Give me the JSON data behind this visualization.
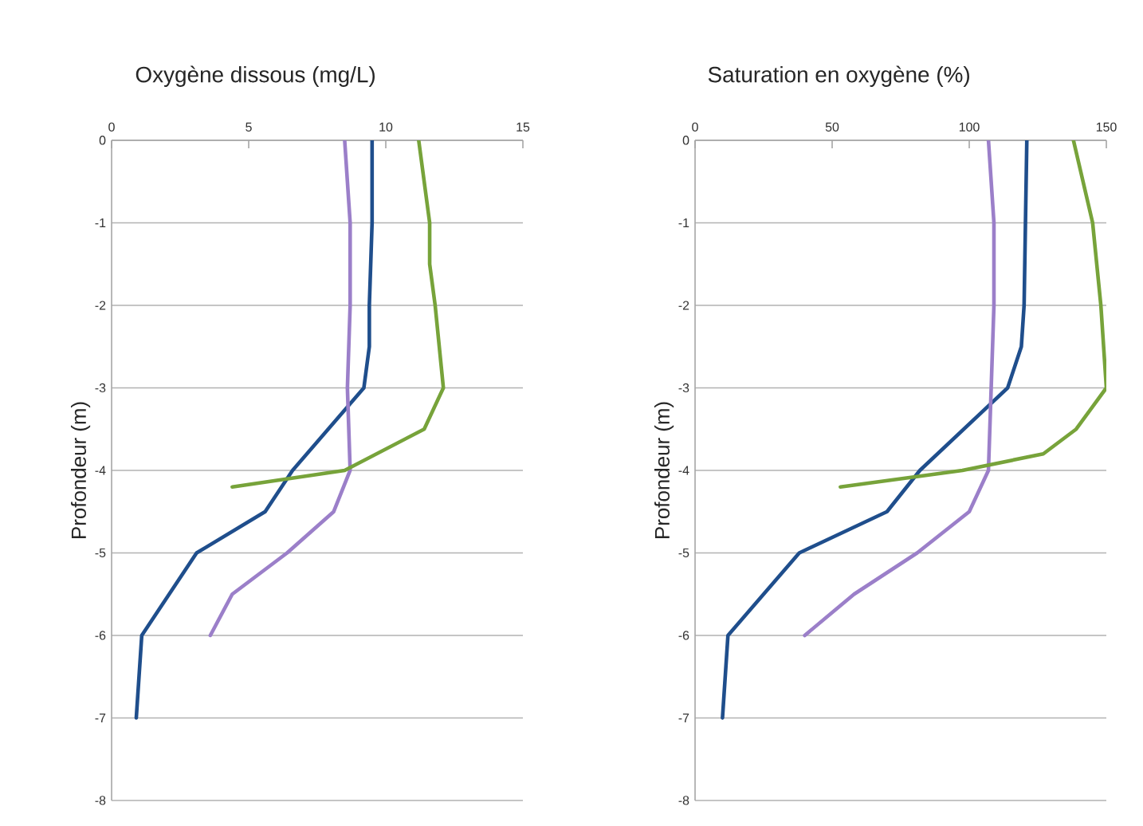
{
  "chart_data": [
    {
      "type": "line",
      "title": "Oxygène dissous (mg/L)",
      "ylabel": "Profondeur  (m)",
      "xlim": [
        0,
        15
      ],
      "xticks": [
        0,
        5,
        10,
        15
      ],
      "ylim": [
        -8,
        0
      ],
      "yticks": [
        -8,
        -7,
        -6,
        -5,
        -4,
        -3,
        -2,
        -1,
        0
      ],
      "grid": "y",
      "marker": "none",
      "line_style": "solid",
      "series": [
        {
          "color": "#1f4e8c",
          "x": [
            9.5,
            9.5,
            9.4,
            9.4,
            9.2,
            6.6,
            5.6,
            3.1,
            1.1,
            0.9
          ],
          "values": [
            0,
            -1,
            -2,
            -2.5,
            -3,
            -4,
            -4.5,
            -5,
            -6,
            -7
          ]
        },
        {
          "color": "#9b7fc9",
          "x": [
            8.5,
            8.7,
            8.7,
            8.6,
            8.7,
            8.1,
            6.4,
            4.4,
            3.6
          ],
          "values": [
            0,
            -1,
            -2,
            -3,
            -4,
            -4.5,
            -5,
            -5.5,
            -6
          ]
        },
        {
          "color": "#77a33a",
          "x": [
            11.2,
            11.6,
            11.6,
            11.8,
            12.1,
            11.4,
            8.5,
            4.4
          ],
          "values": [
            0,
            -1,
            -1.5,
            -2,
            -3,
            -3.5,
            -4,
            -4.2
          ]
        }
      ]
    },
    {
      "type": "line",
      "title": "Saturation en oxygène (%)",
      "ylabel": "Profondeur  (m)",
      "xlim": [
        0,
        150
      ],
      "xticks": [
        0,
        50,
        100,
        150
      ],
      "ylim": [
        -8,
        0
      ],
      "yticks": [
        -8,
        -7,
        -6,
        -5,
        -4,
        -3,
        -2,
        -1,
        0
      ],
      "grid": "y",
      "marker": "none",
      "line_style": "solid",
      "series": [
        {
          "color": "#1f4e8c",
          "x": [
            121,
            120,
            119,
            114,
            98,
            82,
            70,
            38,
            12,
            10
          ],
          "values": [
            0,
            -2,
            -2.5,
            -3,
            -3.5,
            -4,
            -4.5,
            -5,
            -6,
            -7
          ]
        },
        {
          "color": "#9b7fc9",
          "x": [
            107,
            109,
            109,
            108,
            107,
            100,
            81,
            58,
            40
          ],
          "values": [
            0,
            -1,
            -2,
            -3,
            -4,
            -4.5,
            -5,
            -5.5,
            -6
          ]
        },
        {
          "color": "#77a33a",
          "x": [
            138,
            145,
            148,
            150,
            139,
            127,
            97.5,
            53
          ],
          "values": [
            0,
            -1,
            -2,
            -3,
            -3.5,
            -3.8,
            -4,
            -4.2
          ]
        }
      ]
    }
  ]
}
